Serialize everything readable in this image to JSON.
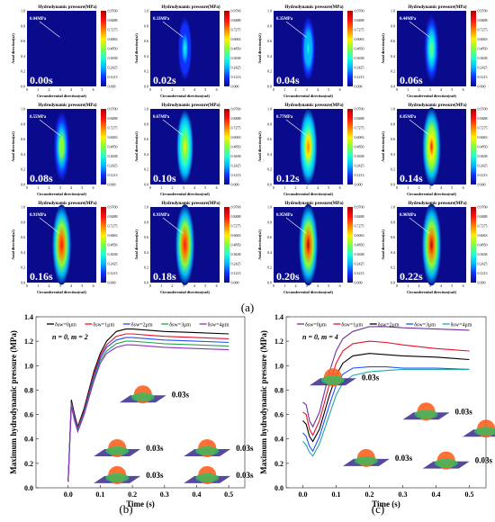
{
  "figure": {
    "panel_a_label": "(a)",
    "panel_b_label": "(b)",
    "panel_c_label": "(c)"
  },
  "heatmaps": {
    "title": "Hydrodynamic pressure(MPa)",
    "xlabel": "Circumferential direction(rad)",
    "ylabel": "Axial direction(xλ)",
    "x_ticks": [
      "0",
      "1",
      "2",
      "3",
      "4",
      "5",
      "6"
    ],
    "y_ticks": [
      "0.0",
      "0.2",
      "0.4",
      "0.6",
      "0.8",
      "1.0"
    ],
    "colorbar_ticks": [
      "0.9700",
      "0.8488",
      "0.7275",
      "0.6063",
      "0.4850",
      "0.3638",
      "0.2425",
      "0.1213",
      "0.000"
    ],
    "colors": [
      "#0a0a8c",
      "#1030ff",
      "#00b8ff",
      "#20ffd0",
      "#80ff40",
      "#fff000",
      "#ff8000",
      "#ff1010",
      "#b00000"
    ],
    "panels": [
      {
        "time": "0.00s",
        "peak": "0.04MPa",
        "level": 0.04
      },
      {
        "time": "0.02s",
        "peak": "0.33MPa",
        "level": 0.33
      },
      {
        "time": "0.04s",
        "peak": "0.35MPa",
        "level": 0.35
      },
      {
        "time": "0.06s",
        "peak": "0.44MPa",
        "level": 0.44
      },
      {
        "time": "0.08s",
        "peak": "0.55MPa",
        "level": 0.55
      },
      {
        "time": "0.10s",
        "peak": "0.67MPa",
        "level": 0.67
      },
      {
        "time": "0.12s",
        "peak": "0.77MPa",
        "level": 0.77
      },
      {
        "time": "0.14s",
        "peak": "0.85MPa",
        "level": 0.85
      },
      {
        "time": "0.16s",
        "peak": "0.91MPa",
        "level": 0.91
      },
      {
        "time": "0.18s",
        "peak": "0.93MPa",
        "level": 0.93
      },
      {
        "time": "0.20s",
        "peak": "0.95MPa",
        "level": 0.95
      },
      {
        "time": "0.22s",
        "peak": "0.96MPa",
        "level": 0.96
      }
    ]
  },
  "chart_data": [
    {
      "type": "line",
      "panel": "(b)",
      "annotation": "n = 0, m = 2",
      "xlabel": "Time (s)",
      "ylabel": "Maximum hydrodynamic pressure (MPa)",
      "xlim": [
        -0.1,
        0.55
      ],
      "ylim": [
        0.0,
        1.4
      ],
      "x_ticks": [
        "0.0",
        "0.1",
        "0.2",
        "0.3",
        "0.4",
        "0.5"
      ],
      "y_ticks": [
        "0.0",
        "0.2",
        "0.4",
        "0.6",
        "0.8",
        "1.0",
        "1.2",
        "1.4"
      ],
      "legend": "top",
      "inset_label": "0.03s",
      "x": [
        0.0,
        0.01,
        0.02,
        0.03,
        0.05,
        0.08,
        0.1,
        0.12,
        0.15,
        0.18,
        0.2,
        0.25,
        0.3,
        0.4,
        0.5
      ],
      "series": [
        {
          "name": "δsw=0μm",
          "color": "#000000",
          "values": [
            0.05,
            0.72,
            0.6,
            0.5,
            0.65,
            0.95,
            1.1,
            1.2,
            1.28,
            1.3,
            1.3,
            1.29,
            1.28,
            1.27,
            1.26
          ]
        },
        {
          "name": "δsw=1μm",
          "color": "#e8102a",
          "values": [
            0.05,
            0.7,
            0.58,
            0.49,
            0.63,
            0.93,
            1.08,
            1.17,
            1.24,
            1.26,
            1.26,
            1.25,
            1.24,
            1.23,
            1.22
          ]
        },
        {
          "name": "δsw=2μm",
          "color": "#2050ff",
          "values": [
            0.05,
            0.69,
            0.57,
            0.48,
            0.62,
            0.91,
            1.06,
            1.15,
            1.21,
            1.23,
            1.23,
            1.22,
            1.21,
            1.2,
            1.19
          ]
        },
        {
          "name": "δsw=3μm",
          "color": "#2aa34a",
          "values": [
            0.05,
            0.68,
            0.56,
            0.47,
            0.61,
            0.89,
            1.04,
            1.12,
            1.18,
            1.2,
            1.2,
            1.19,
            1.18,
            1.17,
            1.16
          ]
        },
        {
          "name": "δsw=4μm",
          "color": "#9030c0",
          "values": [
            0.05,
            0.67,
            0.55,
            0.46,
            0.6,
            0.87,
            1.02,
            1.1,
            1.15,
            1.17,
            1.17,
            1.16,
            1.15,
            1.14,
            1.13
          ]
        }
      ]
    },
    {
      "type": "line",
      "panel": "(c)",
      "annotation": "n = 0, m = 4",
      "xlabel": "Time (s)",
      "ylabel": "Maximum hydrodynamic pressure (MPa)",
      "xlim": [
        -0.05,
        0.55
      ],
      "ylim": [
        0.0,
        1.4
      ],
      "x_ticks": [
        "0.0",
        "0.1",
        "0.2",
        "0.3",
        "0.4",
        "0.5"
      ],
      "y_ticks": [
        "0.0",
        "0.2",
        "0.4",
        "0.6",
        "0.8",
        "1.0",
        "1.2",
        "1.4"
      ],
      "legend": "top",
      "inset_label": "0.03s",
      "x": [
        0.0,
        0.01,
        0.02,
        0.03,
        0.05,
        0.08,
        0.1,
        0.12,
        0.15,
        0.2,
        0.25,
        0.3,
        0.4,
        0.5
      ],
      "series": [
        {
          "name": "δsw=0μm",
          "color": "#7030a0",
          "values": [
            0.7,
            0.68,
            0.55,
            0.5,
            0.62,
            0.95,
            1.12,
            1.22,
            1.28,
            1.32,
            1.32,
            1.31,
            1.3,
            1.29
          ]
        },
        {
          "name": "δsw=1μm",
          "color": "#e8102a",
          "values": [
            0.62,
            0.6,
            0.48,
            0.43,
            0.55,
            0.85,
            1.02,
            1.12,
            1.18,
            1.2,
            1.19,
            1.17,
            1.14,
            1.12
          ]
        },
        {
          "name": "δsw=2μm",
          "color": "#000000",
          "values": [
            0.55,
            0.52,
            0.42,
            0.38,
            0.48,
            0.76,
            0.92,
            1.02,
            1.08,
            1.1,
            1.09,
            1.08,
            1.07,
            1.05
          ]
        },
        {
          "name": "δsw=3μm",
          "color": "#2050ff",
          "values": [
            0.45,
            0.42,
            0.34,
            0.3,
            0.42,
            0.68,
            0.84,
            0.93,
            0.98,
            0.99,
            0.99,
            0.98,
            0.98,
            0.97
          ]
        },
        {
          "name": "δsw=4μm",
          "color": "#20a8a8",
          "values": [
            0.38,
            0.35,
            0.29,
            0.26,
            0.36,
            0.6,
            0.76,
            0.86,
            0.92,
            0.95,
            0.96,
            0.97,
            0.97,
            0.97
          ]
        }
      ]
    }
  ]
}
